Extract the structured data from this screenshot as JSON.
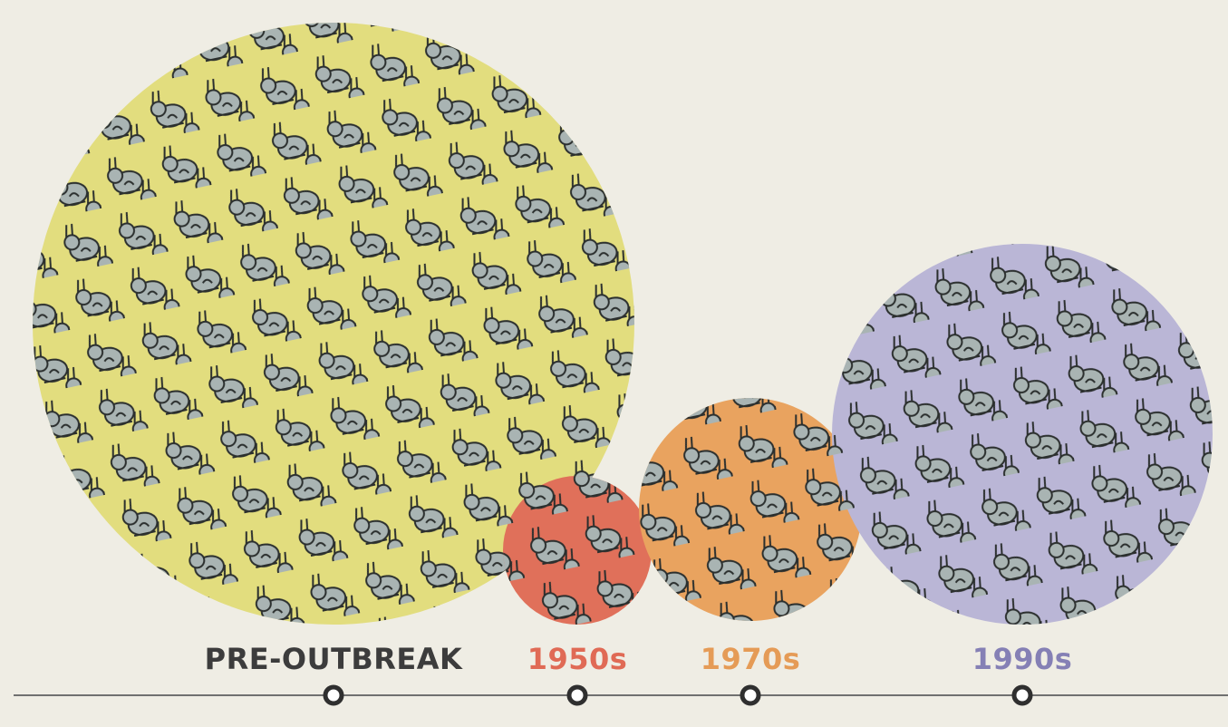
{
  "timeline": {
    "labels": [
      "PRE-OUTBREAK",
      "1950s",
      "1970s",
      "1990s"
    ]
  }
}
